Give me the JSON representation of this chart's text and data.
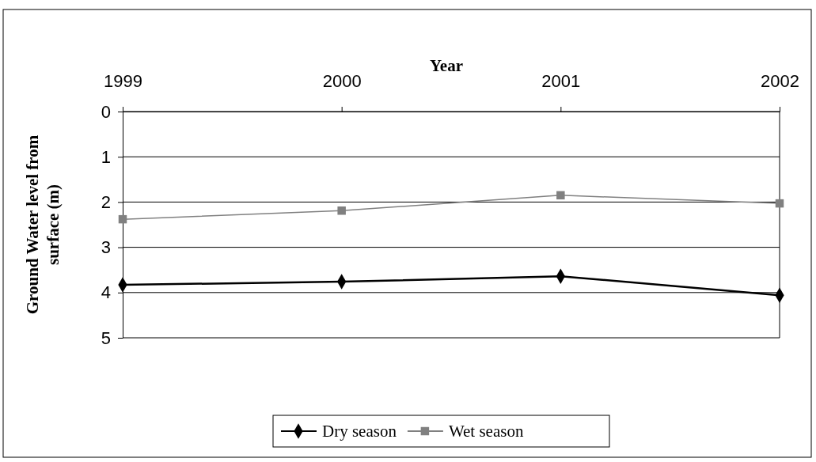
{
  "chart_data": {
    "type": "line",
    "xlabel": "Year",
    "ylabel": "Ground Water level from surface (m)",
    "categories": [
      "1999",
      "2000",
      "2001",
      "2002"
    ],
    "series": [
      {
        "name": "Dry season",
        "color": "#000000",
        "marker": "diamond",
        "values": [
          3.83,
          3.76,
          3.64,
          4.06
        ]
      },
      {
        "name": "Wet season",
        "color": "#808080",
        "marker": "square",
        "values": [
          2.38,
          2.19,
          1.85,
          2.03
        ]
      }
    ],
    "ylim": [
      5,
      0
    ],
    "yticks": [
      0,
      1,
      2,
      3,
      4,
      5
    ],
    "grid": "y",
    "legend": "bottom",
    "line_style": "solid"
  }
}
